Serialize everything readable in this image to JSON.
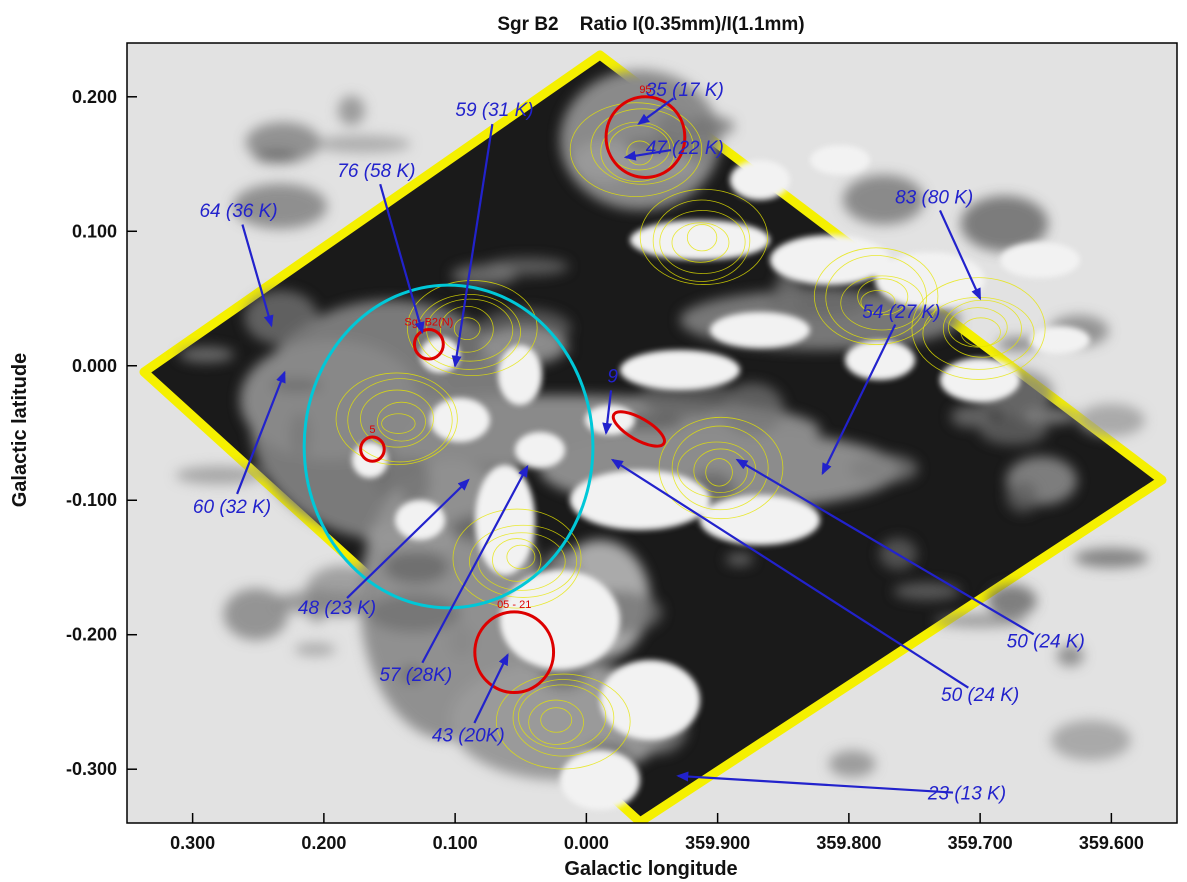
{
  "chart_data": {
    "type": "heatmap",
    "title": "Sgr B2    Ratio I(0.35mm)/I(1.1mm)",
    "xlabel": "Galactic longitude",
    "ylabel": "Galactic latitude",
    "x_ticks": [
      "0.300",
      "0.200",
      "0.100",
      "0.000",
      "359.900",
      "359.800",
      "359.700",
      "359.600"
    ],
    "y_ticks": [
      "0.200",
      "0.100",
      "0.000",
      "-0.100",
      "-0.200",
      "-0.300"
    ],
    "x_tick_values": [
      0.3,
      0.2,
      0.1,
      0.0,
      -0.1,
      -0.2,
      -0.3,
      -0.4
    ],
    "y_tick_values": [
      0.2,
      0.1,
      0.0,
      -0.1,
      -0.2,
      -0.3
    ],
    "xlim": [
      0.35,
      -0.45
    ],
    "ylim": [
      -0.34,
      0.24
    ],
    "grid": false,
    "colors": {
      "image": "grayscale",
      "contours": "#e6e600",
      "annotations": "#2222cc",
      "markers": "#dd0000",
      "ellipse": "#00c8d8"
    },
    "annotations": [
      {
        "text": "35 (17  K)",
        "x": -0.075,
        "y": 0.205,
        "ax": -0.04,
        "ay": 0.18
      },
      {
        "text": "47 (22 K)",
        "x": -0.075,
        "y": 0.162,
        "ax": -0.03,
        "ay": 0.155
      },
      {
        "text": "59 (31 K)",
        "x": 0.07,
        "y": 0.19,
        "ax": 0.1,
        "ay": 0.0
      },
      {
        "text": "76 (58 K)",
        "x": 0.16,
        "y": 0.145,
        "ax": 0.125,
        "ay": 0.025
      },
      {
        "text": "64 (36 K)",
        "x": 0.265,
        "y": 0.115,
        "ax": 0.24,
        "ay": 0.03
      },
      {
        "text": "83  (80 K)",
        "x": -0.265,
        "y": 0.125,
        "ax": -0.3,
        "ay": 0.05
      },
      {
        "text": "54 (27 K)",
        "x": -0.24,
        "y": 0.04,
        "ax": -0.18,
        "ay": -0.08
      },
      {
        "text": "9",
        "x": -0.02,
        "y": -0.008,
        "ax": -0.015,
        "ay": -0.05
      },
      {
        "text": "60 (32 K)",
        "x": 0.27,
        "y": -0.105,
        "ax": 0.23,
        "ay": -0.005
      },
      {
        "text": "48  (23 K)",
        "x": 0.19,
        "y": -0.18,
        "ax": 0.09,
        "ay": -0.085
      },
      {
        "text": "57 (28K)",
        "x": 0.13,
        "y": -0.23,
        "ax": 0.045,
        "ay": -0.075
      },
      {
        "text": "43 (20K)",
        "x": 0.09,
        "y": -0.275,
        "ax": 0.06,
        "ay": -0.215
      },
      {
        "text": "50 (24 K)",
        "x": -0.35,
        "y": -0.205,
        "ax": -0.115,
        "ay": -0.07
      },
      {
        "text": "50 (24 K)",
        "x": -0.3,
        "y": -0.245,
        "ax": -0.02,
        "ay": -0.07
      },
      {
        "text": "23 (13 K)",
        "x": -0.29,
        "y": -0.318,
        "ax": -0.07,
        "ay": -0.305
      }
    ],
    "markers": [
      {
        "label": "95",
        "shape": "circle",
        "x": -0.045,
        "y": 0.17,
        "rx": 0.03,
        "ry": 0.03
      },
      {
        "label": "Sgr B2(N)",
        "shape": "circle",
        "x": 0.12,
        "y": 0.016,
        "rx": 0.011,
        "ry": 0.011
      },
      {
        "label": "5",
        "shape": "circle",
        "x": 0.163,
        "y": -0.062,
        "rx": 0.009,
        "ry": 0.009
      },
      {
        "label": "",
        "shape": "ellipse",
        "x": -0.04,
        "y": -0.047,
        "rx": 0.022,
        "ry": 0.008
      },
      {
        "label": "05 - 21",
        "shape": "circle",
        "x": 0.055,
        "y": -0.213,
        "rx": 0.03,
        "ry": 0.03
      }
    ],
    "big_ellipse": {
      "x": 0.105,
      "y": -0.06,
      "rx": 0.11,
      "ry": 0.12
    }
  }
}
